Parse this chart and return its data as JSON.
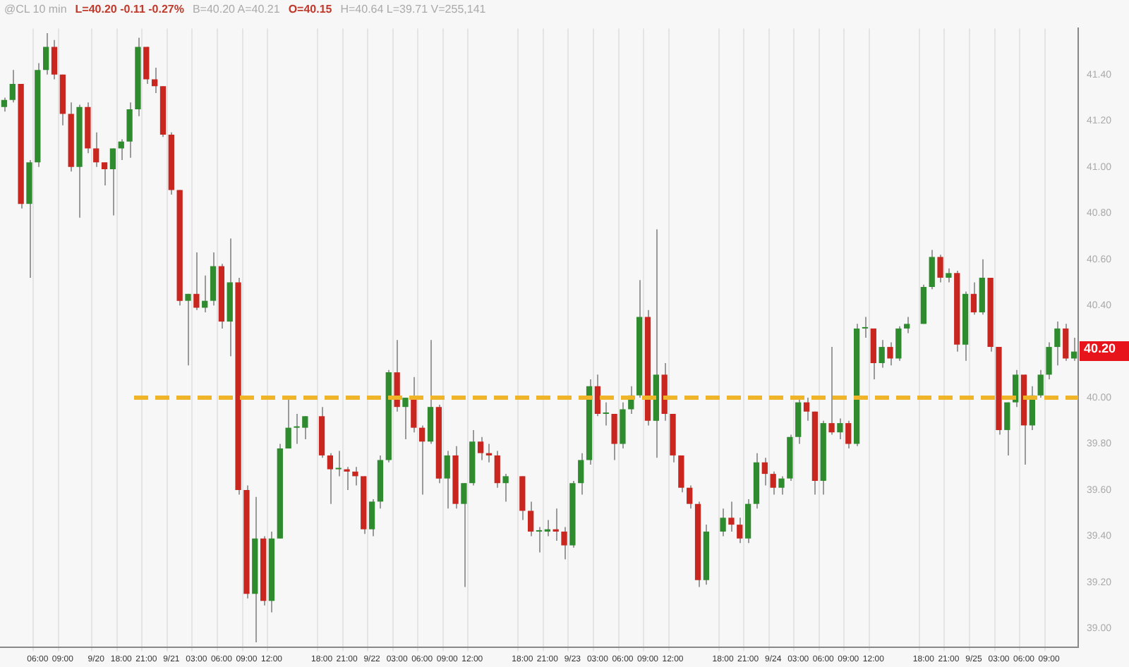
{
  "chart_data": {
    "type": "candlestick",
    "annotations": [
      "@CL  10 min",
      "L=40.20  -0.11  -0.27%",
      "B=40.20  A=40.21",
      "O=40.15",
      "H=40.64  L=39.71  V=255,141",
      "40.20"
    ],
    "categories": [
      null,
      null,
      null,
      null,
      "06:00",
      null,
      null,
      "09:00",
      null,
      null,
      null,
      "9/20",
      null,
      null,
      "18:00",
      null,
      null,
      "21:00",
      null,
      null,
      "9/21",
      null,
      null,
      "03:00",
      null,
      null,
      "06:00",
      null,
      null,
      "09:00",
      null,
      null,
      "12:00",
      null,
      null,
      null,
      null,
      null,
      "18:00",
      null,
      null,
      "21:00",
      null,
      null,
      "9/22",
      null,
      null,
      "03:00",
      null,
      null,
      "06:00",
      null,
      null,
      "09:00",
      null,
      null,
      "12:00",
      null,
      null,
      null,
      null,
      null,
      "18:00",
      null,
      null,
      "21:00",
      null,
      null,
      "9/23",
      null,
      null,
      "03:00",
      null,
      null,
      "06:00",
      null,
      null,
      "09:00",
      null,
      null,
      "12:00",
      null,
      null,
      null,
      null,
      null,
      "18:00",
      null,
      null,
      "21:00",
      null,
      null,
      "9/24",
      null,
      null,
      "03:00",
      null,
      null,
      "06:00",
      null,
      null,
      "09:00",
      null,
      null,
      "12:00",
      null,
      null,
      null,
      null,
      null,
      "18:00",
      null,
      null,
      "21:00",
      null,
      null,
      "9/25",
      null,
      null,
      "03:00",
      null,
      null,
      "06:00",
      null,
      null,
      "09:00",
      null,
      null,
      null
    ],
    "ohlc": [
      [
        41.26,
        41.3,
        41.24,
        41.29
      ],
      [
        41.29,
        41.42,
        41.28,
        41.36
      ],
      [
        41.36,
        41.36,
        40.82,
        40.84
      ],
      [
        40.84,
        41.03,
        40.52,
        41.02
      ],
      [
        41.02,
        41.45,
        41.0,
        41.42
      ],
      [
        41.42,
        41.58,
        41.4,
        41.52
      ],
      [
        41.52,
        41.55,
        41.38,
        41.4
      ],
      [
        41.4,
        41.4,
        41.18,
        41.23
      ],
      [
        41.23,
        41.28,
        40.98,
        41.0
      ],
      [
        41.0,
        41.27,
        40.78,
        41.26
      ],
      [
        41.26,
        41.28,
        41.06,
        41.08
      ],
      [
        41.08,
        41.15,
        41.0,
        41.02
      ],
      [
        41.02,
        41.02,
        40.92,
        40.99
      ],
      [
        40.99,
        41.08,
        40.79,
        41.08
      ],
      [
        41.08,
        41.12,
        41.03,
        41.11
      ],
      [
        41.11,
        41.28,
        41.04,
        41.25
      ],
      [
        41.25,
        41.56,
        41.22,
        41.52
      ],
      [
        41.52,
        41.52,
        41.36,
        41.38
      ],
      [
        41.38,
        41.43,
        41.32,
        41.35
      ],
      [
        41.35,
        41.35,
        41.13,
        41.14
      ],
      [
        41.14,
        41.15,
        40.88,
        40.9
      ],
      [
        40.9,
        40.9,
        40.4,
        40.42
      ],
      [
        40.42,
        40.45,
        40.14,
        40.45
      ],
      [
        40.45,
        40.63,
        40.38,
        40.39
      ],
      [
        40.39,
        40.53,
        40.37,
        40.42
      ],
      [
        40.42,
        40.63,
        40.4,
        40.57
      ],
      [
        40.57,
        40.58,
        40.3,
        40.33
      ],
      [
        40.33,
        40.69,
        40.18,
        40.5
      ],
      [
        40.5,
        40.52,
        39.58,
        39.6
      ],
      [
        39.6,
        39.62,
        39.13,
        39.15
      ],
      [
        39.15,
        39.57,
        38.94,
        39.39
      ],
      [
        39.39,
        39.4,
        39.1,
        39.12
      ],
      [
        39.12,
        39.42,
        39.07,
        39.39
      ],
      [
        39.39,
        39.8,
        39.39,
        39.78
      ],
      [
        39.78,
        40.0,
        39.78,
        39.87
      ],
      [
        39.87,
        39.93,
        39.8,
        39.87
      ],
      [
        39.87,
        39.92,
        39.82,
        39.92
      ],
      null,
      [
        39.92,
        39.96,
        39.74,
        39.75
      ],
      [
        39.75,
        39.76,
        39.54,
        39.69
      ],
      [
        39.69,
        39.77,
        39.66,
        39.69
      ],
      [
        39.69,
        39.7,
        39.6,
        39.68
      ],
      [
        39.68,
        39.7,
        39.62,
        39.66
      ],
      [
        39.66,
        39.66,
        39.41,
        39.43
      ],
      [
        39.43,
        39.56,
        39.4,
        39.55
      ],
      [
        39.55,
        39.75,
        39.52,
        39.73
      ],
      [
        39.73,
        40.12,
        39.72,
        40.11
      ],
      [
        40.11,
        40.25,
        39.94,
        39.96
      ],
      [
        39.96,
        40.0,
        39.82,
        40.0
      ],
      [
        40.0,
        40.09,
        39.85,
        39.87
      ],
      [
        39.87,
        39.88,
        39.58,
        39.81
      ],
      [
        39.81,
        40.25,
        39.8,
        39.96
      ],
      [
        39.96,
        39.97,
        39.63,
        39.65
      ],
      [
        39.65,
        39.77,
        39.52,
        39.75
      ],
      [
        39.75,
        39.79,
        39.52,
        39.54
      ],
      [
        39.54,
        39.63,
        39.18,
        39.63
      ],
      [
        39.63,
        39.86,
        39.62,
        39.81
      ],
      [
        39.81,
        39.83,
        39.73,
        39.76
      ],
      [
        39.76,
        39.8,
        39.72,
        39.75
      ],
      [
        39.75,
        39.77,
        39.61,
        39.63
      ],
      [
        39.63,
        39.67,
        39.55,
        39.66
      ],
      null,
      [
        39.66,
        39.66,
        39.47,
        39.51
      ],
      [
        39.51,
        39.55,
        39.4,
        39.42
      ],
      [
        39.42,
        39.44,
        39.33,
        39.42
      ],
      [
        39.42,
        39.47,
        39.4,
        39.43
      ],
      [
        39.43,
        39.52,
        39.38,
        39.42
      ],
      [
        39.42,
        39.44,
        39.3,
        39.36
      ],
      [
        39.36,
        39.64,
        39.35,
        39.63
      ],
      [
        39.63,
        39.76,
        39.58,
        39.73
      ],
      [
        39.73,
        40.08,
        39.71,
        40.05
      ],
      [
        40.05,
        40.1,
        39.92,
        39.93
      ],
      [
        39.93,
        39.98,
        39.88,
        39.93
      ],
      [
        39.93,
        39.93,
        39.73,
        39.8
      ],
      [
        39.8,
        39.98,
        39.78,
        39.95
      ],
      [
        39.95,
        40.05,
        39.93,
        40.01
      ],
      [
        40.01,
        40.51,
        40.0,
        40.35
      ],
      [
        40.35,
        40.38,
        39.88,
        39.9
      ],
      [
        39.9,
        40.73,
        39.74,
        40.1
      ],
      [
        40.1,
        40.15,
        39.9,
        39.93
      ],
      [
        39.93,
        39.93,
        39.72,
        39.75
      ],
      [
        39.75,
        39.75,
        39.59,
        39.61
      ],
      [
        39.61,
        39.62,
        39.52,
        39.54
      ],
      [
        39.54,
        39.55,
        39.18,
        39.21
      ],
      [
        39.21,
        39.45,
        39.19,
        39.42
      ],
      null,
      [
        39.42,
        39.52,
        39.4,
        39.48
      ],
      [
        39.48,
        39.55,
        39.42,
        39.45
      ],
      [
        39.45,
        39.48,
        39.37,
        39.39
      ],
      [
        39.39,
        39.56,
        39.37,
        39.54
      ],
      [
        39.54,
        39.76,
        39.52,
        39.72
      ],
      [
        39.72,
        39.74,
        39.62,
        39.67
      ],
      [
        39.67,
        39.68,
        39.58,
        39.61
      ],
      [
        39.61,
        39.66,
        39.58,
        39.65
      ],
      [
        39.65,
        39.84,
        39.64,
        39.83
      ],
      [
        39.83,
        40.0,
        39.8,
        39.98
      ],
      [
        39.98,
        40.0,
        39.9,
        39.94
      ],
      [
        39.94,
        39.94,
        39.58,
        39.64
      ],
      [
        39.64,
        39.9,
        39.58,
        39.89
      ],
      [
        39.89,
        40.22,
        39.84,
        39.85
      ],
      [
        39.85,
        39.91,
        39.82,
        39.89
      ],
      [
        39.89,
        39.9,
        39.78,
        39.8
      ],
      [
        39.8,
        40.32,
        39.79,
        40.3
      ],
      [
        40.3,
        40.35,
        40.26,
        40.3
      ],
      [
        40.3,
        40.3,
        40.08,
        40.15
      ],
      [
        40.15,
        40.25,
        40.13,
        40.22
      ],
      [
        40.22,
        40.24,
        40.14,
        40.17
      ],
      [
        40.17,
        40.31,
        40.16,
        40.3
      ],
      [
        40.3,
        40.35,
        40.28,
        40.32
      ],
      null,
      [
        40.32,
        40.49,
        40.32,
        40.48
      ],
      [
        40.48,
        40.64,
        40.47,
        40.61
      ],
      [
        40.61,
        40.62,
        40.5,
        40.52
      ],
      [
        40.52,
        40.56,
        40.5,
        40.54
      ],
      [
        40.54,
        40.55,
        40.2,
        40.23
      ],
      [
        40.23,
        40.46,
        40.16,
        40.45
      ],
      [
        40.45,
        40.5,
        40.36,
        40.37
      ],
      [
        40.37,
        40.6,
        40.36,
        40.52
      ],
      [
        40.52,
        40.52,
        40.2,
        40.22
      ],
      [
        40.22,
        40.22,
        39.84,
        39.86
      ],
      [
        39.86,
        39.98,
        39.75,
        39.98
      ],
      [
        39.98,
        40.12,
        39.96,
        40.1
      ],
      [
        40.1,
        40.1,
        39.71,
        39.88
      ],
      [
        39.88,
        40.05,
        39.86,
        40.01
      ],
      [
        40.01,
        40.12,
        40.0,
        40.1
      ],
      [
        40.1,
        40.24,
        40.08,
        40.22
      ],
      [
        40.22,
        40.33,
        40.14,
        40.3
      ],
      [
        40.3,
        40.32,
        40.16,
        40.17
      ],
      [
        40.17,
        40.26,
        40.16,
        40.2
      ]
    ],
    "ylim": [
      38.92,
      41.6
    ],
    "yticks": [
      {
        "value": 39.0,
        "label": "39.00"
      },
      {
        "value": 39.2,
        "label": "39.20"
      },
      {
        "value": 39.4,
        "label": "39.40"
      },
      {
        "value": 39.6,
        "label": "39.60"
      },
      {
        "value": 39.8,
        "label": "39.80"
      },
      {
        "value": 40.0,
        "label": "40.00"
      },
      {
        "value": 40.4,
        "label": "40.40"
      },
      {
        "value": 40.6,
        "label": "40.60"
      },
      {
        "value": 40.8,
        "label": "40.80"
      },
      {
        "value": 41.0,
        "label": "41.00"
      },
      {
        "value": 41.2,
        "label": "41.20"
      },
      {
        "value": 41.4,
        "label": "41.40"
      }
    ],
    "ref_lines": [
      {
        "axis": "y",
        "value": 40.0,
        "color": "#f0b429",
        "line_style": "dashed"
      }
    ],
    "grid": "x",
    "legend": false
  }
}
